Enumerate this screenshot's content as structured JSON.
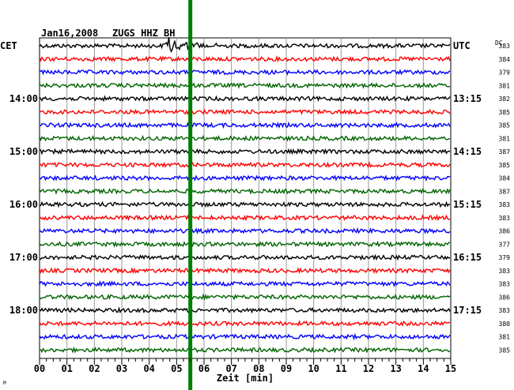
{
  "header": {
    "date": "Jan16,2008",
    "station": "ZUGS HHZ BH",
    "left_tz": "CET",
    "right_tz": "UTC",
    "dc_header": "DC"
  },
  "chart_data": {
    "type": "line",
    "title": "Jan16,2008  ZUGS HHZ BH",
    "xlabel": "Zeit [min]",
    "xlim": [
      0,
      15
    ],
    "x_ticks": [
      "00",
      "01",
      "02",
      "03",
      "04",
      "05",
      "06",
      "07",
      "08",
      "09",
      "10",
      "11",
      "12",
      "13",
      "14",
      "15"
    ],
    "trace_count": 24,
    "trace_colors": [
      "#000000",
      "#ff0000",
      "#0000ff",
      "#006400"
    ],
    "left_hour_labels": [
      {
        "trace": 4,
        "label": "14:00"
      },
      {
        "trace": 8,
        "label": "15:00"
      },
      {
        "trace": 12,
        "label": "16:00"
      },
      {
        "trace": 16,
        "label": "17:00"
      },
      {
        "trace": 20,
        "label": "18:00"
      }
    ],
    "right_hour_labels": [
      {
        "trace": 0,
        "label": "UTC"
      },
      {
        "trace": 4,
        "label": "13:15"
      },
      {
        "trace": 8,
        "label": "14:15"
      },
      {
        "trace": 12,
        "label": "15:15"
      },
      {
        "trace": 16,
        "label": "16:15"
      },
      {
        "trace": 20,
        "label": "17:15"
      }
    ],
    "dc_values": [
      "383",
      "384",
      "379",
      "381",
      "382",
      "385",
      "385",
      "381",
      "387",
      "385",
      "384",
      "387",
      "383",
      "383",
      "386",
      "377",
      "379",
      "383",
      "383",
      "386",
      "383",
      "380",
      "381",
      "385"
    ],
    "event_marker_minute": 5.5,
    "event_marker_color": "#008000",
    "event_minute": 4.7
  },
  "footer_mark": "M"
}
